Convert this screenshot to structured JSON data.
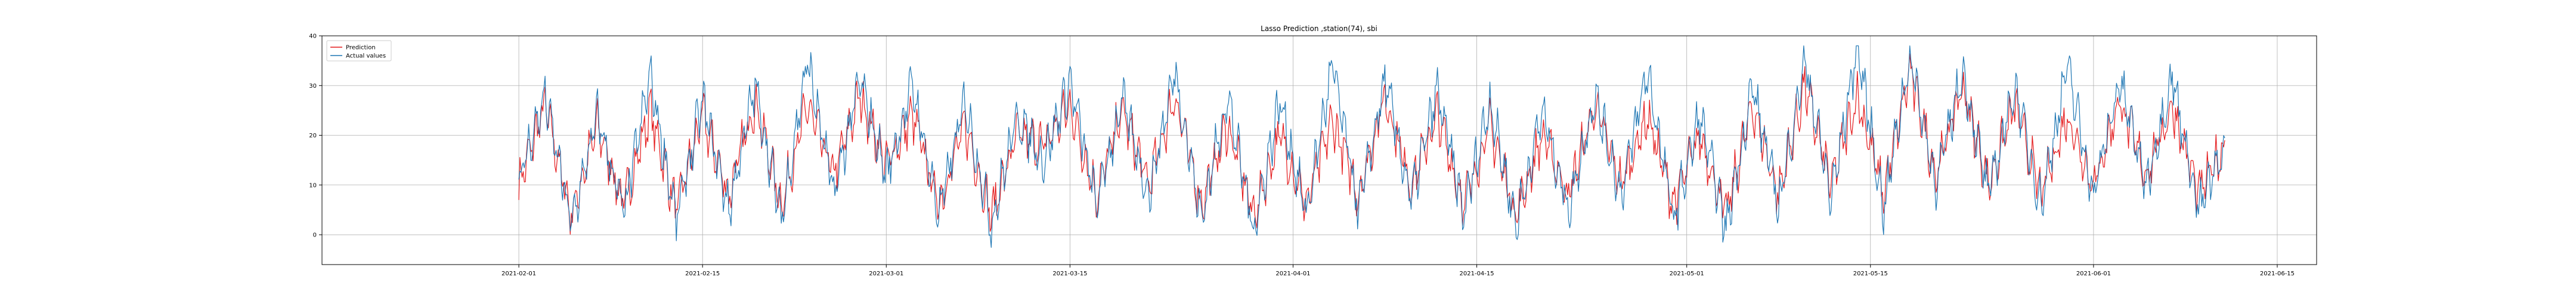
{
  "chart_data": {
    "type": "line",
    "title": "Lasso Prediction ,station(74), sbi",
    "xlabel": "",
    "ylabel": "",
    "x_axis_type": "date",
    "xlim": [
      "2021-01-17",
      "2021-06-18"
    ],
    "ylim": [
      -6,
      40
    ],
    "x_ticks": [
      "2021-02-01",
      "2021-02-15",
      "2021-03-01",
      "2021-03-15",
      "2021-04-01",
      "2021-04-15",
      "2021-05-01",
      "2021-05-15",
      "2021-06-01",
      "2021-06-15"
    ],
    "y_ticks": [
      0,
      10,
      20,
      30,
      40
    ],
    "grid": true,
    "legend_position": "top-left",
    "series": [
      {
        "name": "Prediction",
        "color": "#e41a1c",
        "x": [
          "2021-02-01",
          "2021-02-03",
          "2021-02-05",
          "2021-02-07",
          "2021-02-09",
          "2021-02-11",
          "2021-02-13",
          "2021-02-15",
          "2021-02-17",
          "2021-02-19",
          "2021-02-21",
          "2021-02-23",
          "2021-02-25",
          "2021-02-27",
          "2021-03-01",
          "2021-03-03",
          "2021-03-05",
          "2021-03-07",
          "2021-03-09",
          "2021-03-11",
          "2021-03-13",
          "2021-03-15",
          "2021-03-17",
          "2021-03-19",
          "2021-03-21",
          "2021-03-23",
          "2021-03-25",
          "2021-03-27",
          "2021-03-29",
          "2021-03-31",
          "2021-04-02",
          "2021-04-04",
          "2021-04-06",
          "2021-04-08",
          "2021-04-10",
          "2021-04-12",
          "2021-04-14",
          "2021-04-16",
          "2021-04-18",
          "2021-04-20",
          "2021-04-22",
          "2021-04-24",
          "2021-04-26",
          "2021-04-28",
          "2021-04-30",
          "2021-05-02",
          "2021-05-04",
          "2021-05-06",
          "2021-05-08",
          "2021-05-10",
          "2021-05-12",
          "2021-05-14",
          "2021-05-16",
          "2021-05-18",
          "2021-05-20",
          "2021-05-22",
          "2021-05-24",
          "2021-05-26",
          "2021-05-28",
          "2021-05-30",
          "2021-06-01",
          "2021-06-03",
          "2021-06-05",
          "2021-06-07",
          "2021-06-09",
          "2021-06-11"
        ],
        "values": [
          10,
          26,
          4,
          22,
          6,
          25,
          5,
          24,
          8,
          27,
          6,
          26,
          12,
          28,
          14,
          24,
          6,
          22,
          4,
          20,
          18,
          26,
          8,
          25,
          10,
          28,
          6,
          22,
          4,
          20,
          6,
          23,
          8,
          28,
          10,
          24,
          6,
          22,
          4,
          20,
          8,
          26,
          10,
          24,
          6,
          20,
          4,
          26,
          8,
          30,
          10,
          28,
          8,
          33,
          12,
          30,
          10,
          26,
          8,
          24,
          10,
          27,
          12,
          26,
          8,
          18
        ]
      },
      {
        "name": "Actual values",
        "color": "#1f77b4",
        "x": [
          "2021-02-01",
          "2021-02-03",
          "2021-02-05",
          "2021-02-07",
          "2021-02-09",
          "2021-02-11",
          "2021-02-13",
          "2021-02-15",
          "2021-02-17",
          "2021-02-19",
          "2021-02-21",
          "2021-02-23",
          "2021-02-25",
          "2021-02-27",
          "2021-03-01",
          "2021-03-03",
          "2021-03-05",
          "2021-03-07",
          "2021-03-09",
          "2021-03-11",
          "2021-03-13",
          "2021-03-15",
          "2021-03-17",
          "2021-03-19",
          "2021-03-21",
          "2021-03-23",
          "2021-03-25",
          "2021-03-27",
          "2021-03-29",
          "2021-03-31",
          "2021-04-02",
          "2021-04-04",
          "2021-04-06",
          "2021-04-08",
          "2021-04-10",
          "2021-04-12",
          "2021-04-14",
          "2021-04-16",
          "2021-04-18",
          "2021-04-20",
          "2021-04-22",
          "2021-04-24",
          "2021-04-26",
          "2021-04-28",
          "2021-04-30",
          "2021-05-02",
          "2021-05-04",
          "2021-05-06",
          "2021-05-08",
          "2021-05-10",
          "2021-05-12",
          "2021-05-14",
          "2021-05-16",
          "2021-05-18",
          "2021-05-20",
          "2021-05-22",
          "2021-05-24",
          "2021-05-26",
          "2021-05-28",
          "2021-05-30",
          "2021-06-01",
          "2021-06-03",
          "2021-06-05",
          "2021-06-07",
          "2021-06-09",
          "2021-06-11"
        ],
        "values": [
          11,
          28,
          2,
          24,
          4,
          32,
          3,
          27,
          5,
          30,
          3,
          35,
          8,
          31,
          12,
          30,
          4,
          27,
          2,
          24,
          15,
          31,
          6,
          27,
          8,
          33,
          3,
          28,
          1,
          27,
          4,
          34,
          5,
          31,
          7,
          29,
          4,
          27,
          2,
          25,
          5,
          28,
          8,
          33,
          3,
          24,
          1,
          30,
          6,
          35,
          7,
          38,
          5,
          36,
          10,
          33,
          8,
          30,
          6,
          34,
          8,
          31,
          10,
          32,
          5,
          17
        ]
      }
    ]
  }
}
